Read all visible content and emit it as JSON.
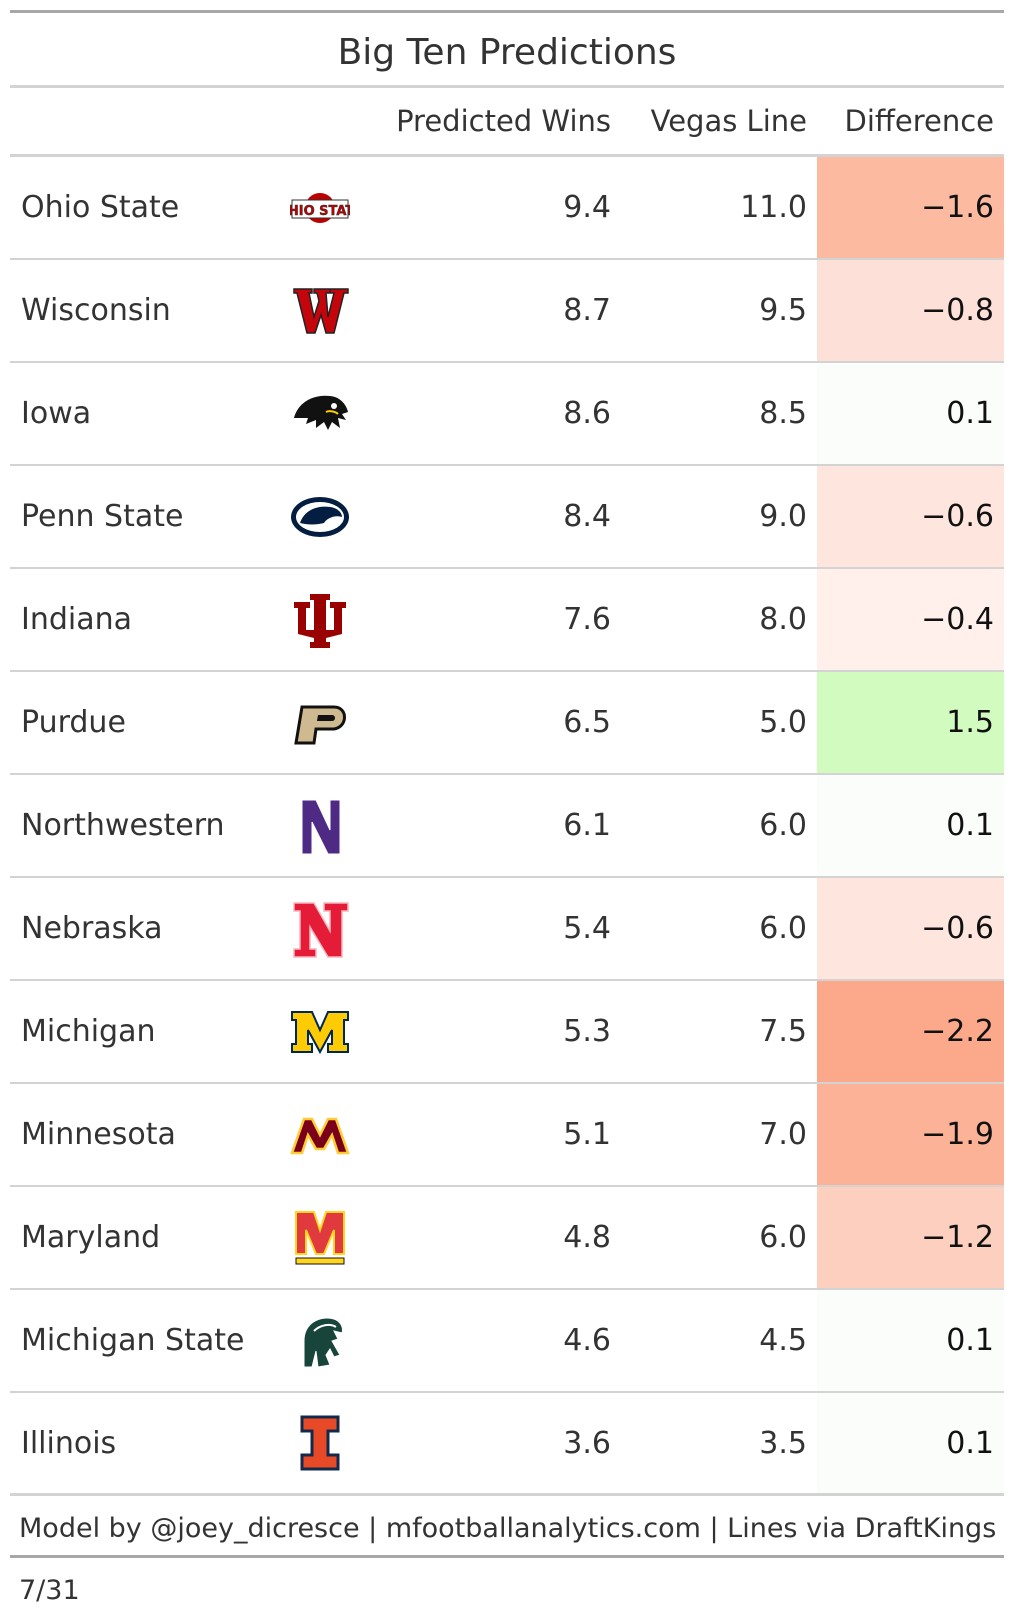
{
  "chart_data": {
    "type": "table",
    "title": "Big Ten Predictions",
    "columns": [
      "",
      "",
      "Predicted Wins",
      "Vegas Line",
      "Difference"
    ],
    "rows": [
      {
        "team": "Ohio State",
        "logo": "ohio-state-logo-icon",
        "predicted": "9.4",
        "vegas": "11.0",
        "difference": "−1.6",
        "diff_value": -1.6,
        "color": "#fcbba1"
      },
      {
        "team": "Wisconsin",
        "logo": "wisconsin-logo-icon",
        "predicted": "8.7",
        "vegas": "9.5",
        "difference": "−0.8",
        "diff_value": -0.8,
        "color": "#fde0d7"
      },
      {
        "team": "Iowa",
        "logo": "iowa-logo-icon",
        "predicted": "8.6",
        "vegas": "8.5",
        "difference": "0.1",
        "diff_value": 0.1,
        "color": "#fbfdfa"
      },
      {
        "team": "Penn State",
        "logo": "penn-state-logo-icon",
        "predicted": "8.4",
        "vegas": "9.0",
        "difference": "−0.6",
        "diff_value": -0.6,
        "color": "#fee6df"
      },
      {
        "team": "Indiana",
        "logo": "indiana-logo-icon",
        "predicted": "7.6",
        "vegas": "8.0",
        "difference": "−0.4",
        "diff_value": -0.4,
        "color": "#fff0ec"
      },
      {
        "team": "Purdue",
        "logo": "purdue-logo-icon",
        "predicted": "6.5",
        "vegas": "5.0",
        "difference": "1.5",
        "diff_value": 1.5,
        "color": "#d2fbc0"
      },
      {
        "team": "Northwestern",
        "logo": "northwestern-logo-icon",
        "predicted": "6.1",
        "vegas": "6.0",
        "difference": "0.1",
        "diff_value": 0.1,
        "color": "#fbfdfa"
      },
      {
        "team": "Nebraska",
        "logo": "nebraska-logo-icon",
        "predicted": "5.4",
        "vegas": "6.0",
        "difference": "−0.6",
        "diff_value": -0.6,
        "color": "#fee6df"
      },
      {
        "team": "Michigan",
        "logo": "michigan-logo-icon",
        "predicted": "5.3",
        "vegas": "7.5",
        "difference": "−2.2",
        "diff_value": -2.2,
        "color": "#fca98b"
      },
      {
        "team": "Minnesota",
        "logo": "minnesota-logo-icon",
        "predicted": "5.1",
        "vegas": "7.0",
        "difference": "−1.9",
        "diff_value": -1.9,
        "color": "#fcb296"
      },
      {
        "team": "Maryland",
        "logo": "maryland-logo-icon",
        "predicted": "4.8",
        "vegas": "6.0",
        "difference": "−1.2",
        "diff_value": -1.2,
        "color": "#fdcfbe"
      },
      {
        "team": "Michigan State",
        "logo": "michigan-state-logo-icon",
        "predicted": "4.6",
        "vegas": "4.5",
        "difference": "0.1",
        "diff_value": 0.1,
        "color": "#fbfdfa"
      },
      {
        "team": "Illinois",
        "logo": "illinois-logo-icon",
        "predicted": "3.6",
        "vegas": "3.5",
        "difference": "0.1",
        "diff_value": 0.1,
        "color": "#fbfdfa"
      }
    ],
    "footer": "Model by @joey_dicresce | mfootballanalytics.com | Lines via DraftKings 7/31"
  }
}
